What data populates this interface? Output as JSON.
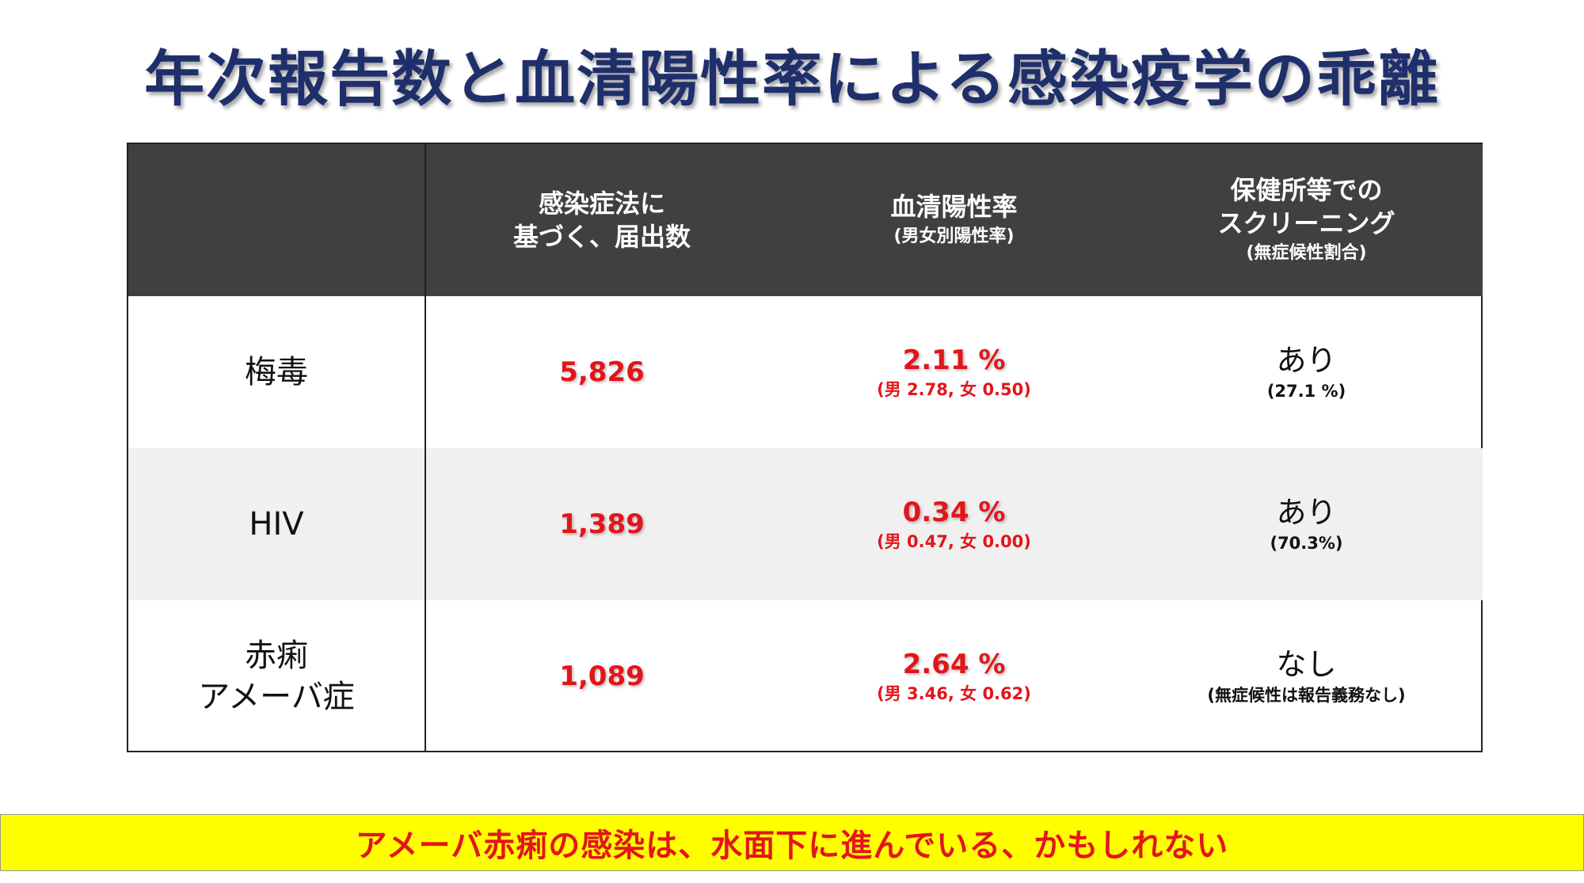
{
  "title": "年次報告数と血清陽性率による感染疫学の乖離",
  "table": {
    "headers": [
      {
        "main": [
          ""
        ],
        "sub": ""
      },
      {
        "main": [
          "感染症法に",
          "基づく、届出数"
        ],
        "sub": ""
      },
      {
        "main": [
          "血清陽性率"
        ],
        "sub": "(男女別陽性率)"
      },
      {
        "main": [
          "保健所等での",
          "スクリーニング"
        ],
        "sub": "(無症候性割合)"
      }
    ],
    "rows": [
      {
        "label": [
          "梅毒"
        ],
        "count": "5,826",
        "rate": "2.11 %",
        "rate_detail": "(男 2.78, 女 0.50)",
        "screening": "あり",
        "screening_detail": "(27.1 %)"
      },
      {
        "label": [
          "HIV"
        ],
        "count": "1,389",
        "rate": "0.34 %",
        "rate_detail": "(男 0.47, 女 0.00)",
        "screening": "あり",
        "screening_detail": "(70.3%)"
      },
      {
        "label": [
          "赤痢",
          "アメーバ症"
        ],
        "count": "1,089",
        "rate": "2.64 %",
        "rate_detail": "(男 3.46, 女 0.62)",
        "screening": "なし",
        "screening_detail": "(無症候性は報告義務なし)"
      }
    ]
  },
  "banner": "アメーバ赤痢の感染は、水面下に進んでいる、かもしれない",
  "colors": {
    "title": "#1f2f6b",
    "header_bg": "#404040",
    "highlight_red": "#e3151a",
    "banner_bg": "#ffff00",
    "alt_row": "#f0f0f0"
  }
}
